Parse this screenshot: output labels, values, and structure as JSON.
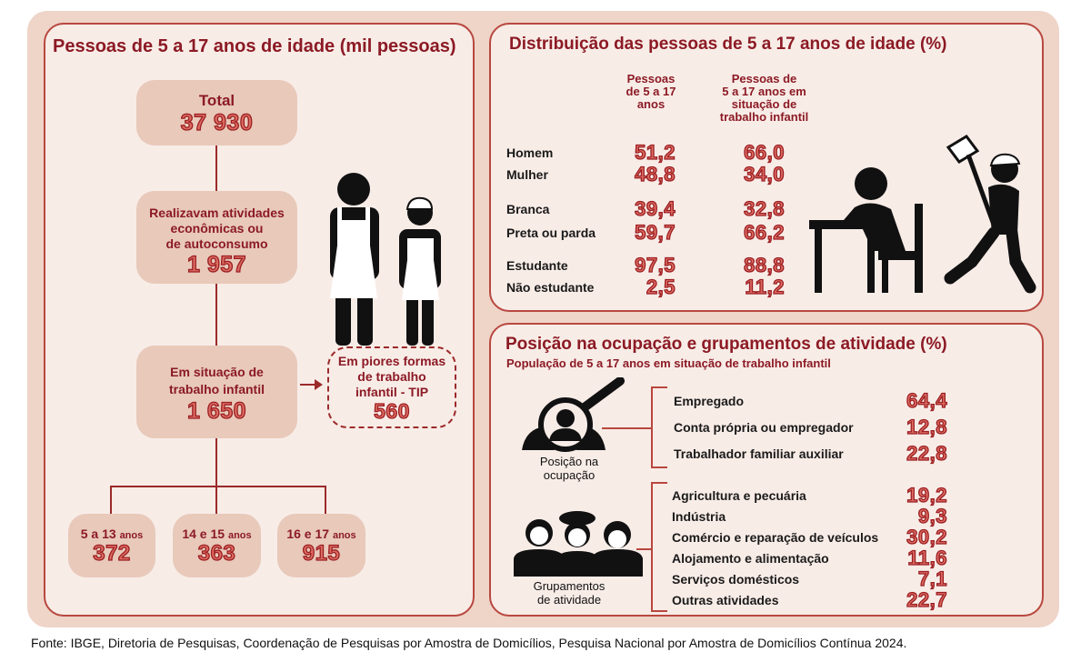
{
  "left_panel": {
    "title": "Pessoas de 5 a 17 anos de idade (mil pessoas)",
    "total": {
      "label": "Total",
      "value": "37 930"
    },
    "atividades": {
      "label_lines": [
        "Realizavam atividades",
        "econômicas ou",
        "de autoconsumo"
      ],
      "value": "1 957"
    },
    "trabalho_infantil": {
      "label_lines": [
        "Em situação  de",
        "trabalho infantil"
      ],
      "value": "1 650"
    },
    "tip": {
      "label_lines": [
        "Em piores formas",
        "de trabalho",
        "infantil  - TIP"
      ],
      "value": "560"
    },
    "age_groups": [
      {
        "range": "5 a 13",
        "unit": "anos",
        "value": "372"
      },
      {
        "range": "14 e 15",
        "unit": "anos",
        "value": "363"
      },
      {
        "range": "16 e 17",
        "unit": "anos",
        "value": "915"
      }
    ]
  },
  "distribution_panel": {
    "title": "Distribuição das pessoas de 5 a 17 anos de idade (%)",
    "col1_lines": [
      "Pessoas",
      "de 5 a 17",
      "anos"
    ],
    "col2_lines": [
      "Pessoas de",
      "5 a 17 anos em",
      "situação de",
      "trabalho infantil"
    ],
    "rows": [
      {
        "label": "Homem",
        "v1": "51,2",
        "v2": "66,0"
      },
      {
        "label": "Mulher",
        "v1": "48,8",
        "v2": "34,0"
      },
      {
        "label": "Branca",
        "v1": "39,4",
        "v2": "32,8"
      },
      {
        "label": "Preta ou parda",
        "v1": "59,7",
        "v2": "66,2"
      },
      {
        "label": "Estudante",
        "v1": "97,5",
        "v2": "88,8"
      },
      {
        "label": "Não estudante",
        "v1": "2,5",
        "v2": "11,2"
      }
    ]
  },
  "occupation_panel": {
    "title": "Posição na ocupação e grupamentos de atividade (%)",
    "subtitle": "População de 5 a 17 anos em situação de trabalho infantil",
    "position_icon_label_lines": [
      "Posição na",
      "ocupação"
    ],
    "position": [
      {
        "label": "Empregado",
        "value": "64,4"
      },
      {
        "label": "Conta própria ou empregador",
        "value": "12,8"
      },
      {
        "label": "Trabalhador familiar auxiliar",
        "value": "22,8"
      }
    ],
    "groups_icon_label_lines": [
      "Grupamentos",
      "de atividade"
    ],
    "groups": [
      {
        "label": "Agricultura e pecuária",
        "value": "19,2"
      },
      {
        "label": "Indústria",
        "value": "9,3"
      },
      {
        "label": "Comércio e reparação de veículos",
        "value": "30,2"
      },
      {
        "label": "Alojamento e alimentação",
        "value": "11,6"
      },
      {
        "label": "Serviços domésticos",
        "value": "7,1"
      },
      {
        "label": "Outras atividades",
        "value": "22,7"
      }
    ]
  },
  "footer": "Fonte: IBGE, Diretoria de Pesquisas, Coordenação de Pesquisas por Amostra de Domicílios, Pesquisa Nacional por Amostra de Domicílios Contínua 2024."
}
